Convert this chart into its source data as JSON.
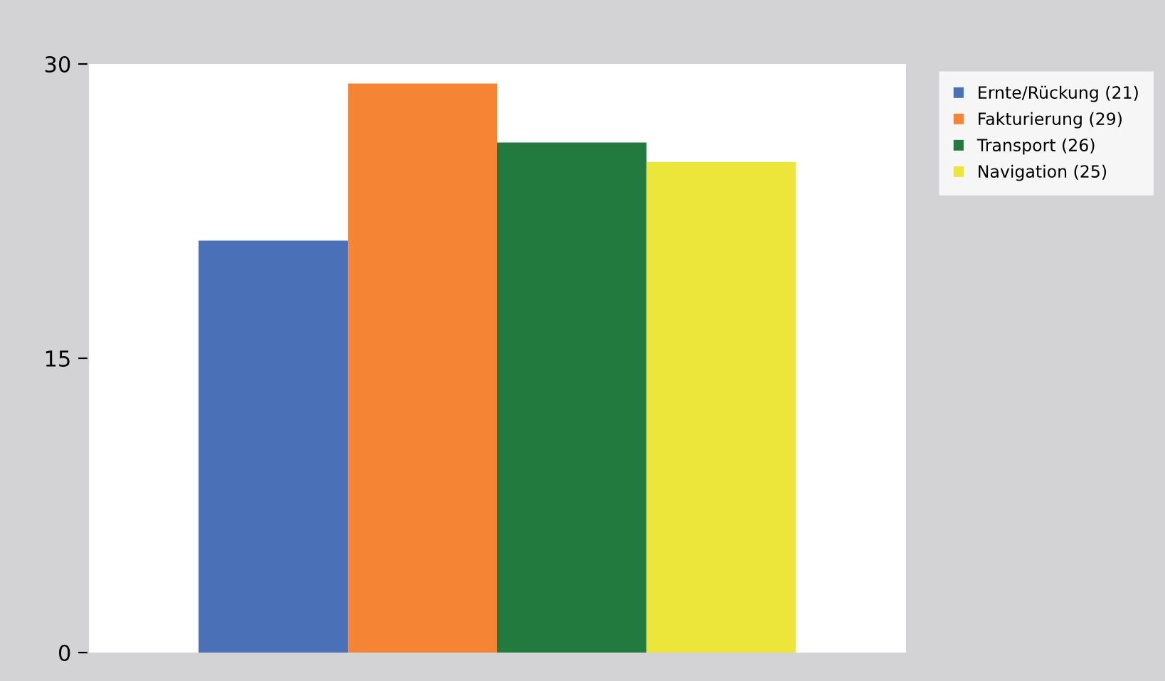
{
  "chart_data": {
    "type": "bar",
    "categories": [
      null
    ],
    "series": [
      {
        "name": "Ernte/Rückung (21)",
        "color": "#4a70b8",
        "values": [
          21
        ]
      },
      {
        "name": "Fakturierung (29)",
        "color": "#f58535",
        "values": [
          29
        ]
      },
      {
        "name": "Transport (26)",
        "color": "#237a3f",
        "values": [
          26
        ]
      },
      {
        "name": "Navigation (25)",
        "color": "#ece53a",
        "values": [
          25
        ]
      }
    ],
    "ylim": [
      0,
      30
    ],
    "yticks": [
      0,
      15,
      30
    ],
    "grid": false,
    "legend": "top right"
  }
}
